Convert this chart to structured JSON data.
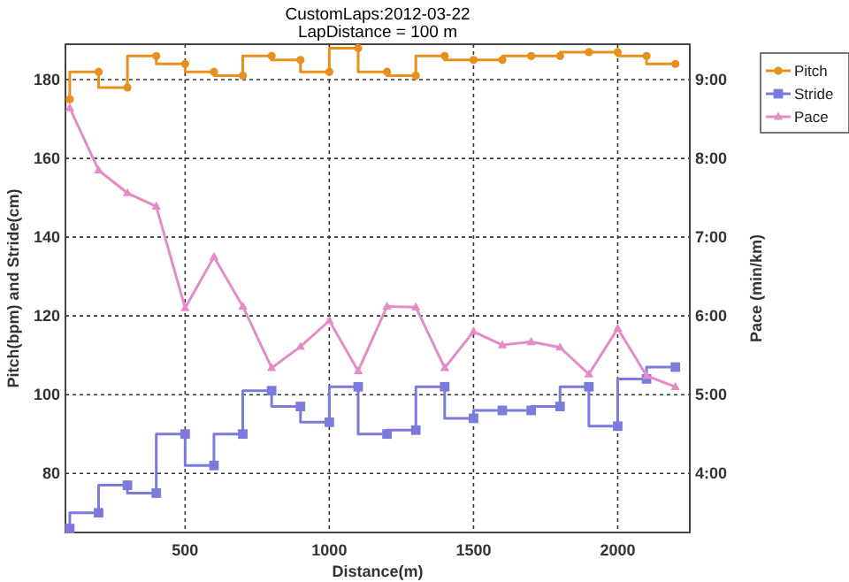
{
  "chart_data": {
    "type": "step",
    "title": "CustomLaps:2012-03-22",
    "subtitle": "LapDistance = 100 m",
    "xlabel": "Distance(m)",
    "ylabel": "Pitch(bpm) and Stride(cm)",
    "y2label": "Pace (min/km)",
    "x": [
      100,
      200,
      300,
      400,
      500,
      600,
      700,
      800,
      900,
      1000,
      1100,
      1200,
      1300,
      1400,
      1500,
      1600,
      1700,
      1800,
      1900,
      2000,
      2100,
      2200
    ],
    "xlim": [
      85,
      2250
    ],
    "xticks": [
      500,
      1000,
      1500,
      2000
    ],
    "ylim": [
      65,
      189
    ],
    "yticks": [
      80,
      100,
      120,
      140,
      160,
      180
    ],
    "y2lim": [
      3.25,
      9.45
    ],
    "y2ticks": [
      {
        "value": 4,
        "label": "4:00"
      },
      {
        "value": 5,
        "label": "5:00"
      },
      {
        "value": 6,
        "label": "6:00"
      },
      {
        "value": 7,
        "label": "7:00"
      },
      {
        "value": 8,
        "label": "8:00"
      },
      {
        "value": 9,
        "label": "9:00"
      }
    ],
    "grid": true,
    "legend": "top right",
    "line_style": "solid",
    "series": [
      {
        "name": "Pitch",
        "color": "#e8901c",
        "marker": "circle",
        "values": [
          175,
          182,
          178,
          186,
          184,
          182,
          181,
          186,
          185,
          182,
          188,
          182,
          181,
          186,
          185,
          185,
          186,
          186,
          187,
          187,
          186,
          184
        ]
      },
      {
        "name": "Stride",
        "color": "#7b7bdb",
        "marker": "square",
        "values": [
          66,
          70,
          77,
          75,
          90,
          82,
          90,
          101,
          97,
          93,
          102,
          90,
          91,
          102,
          94,
          96,
          96,
          97,
          102,
          92,
          104,
          107
        ]
      },
      {
        "name": "Pace",
        "type": "line",
        "axis": "y2",
        "color": "#e58cc8",
        "marker": "triangle",
        "values": [
          8.64,
          7.85,
          7.56,
          7.39,
          6.1,
          6.75,
          6.12,
          5.34,
          5.61,
          5.94,
          5.3,
          6.12,
          6.11,
          5.34,
          5.8,
          5.63,
          5.67,
          5.6,
          5.26,
          5.84,
          5.24,
          5.1
        ]
      }
    ]
  }
}
